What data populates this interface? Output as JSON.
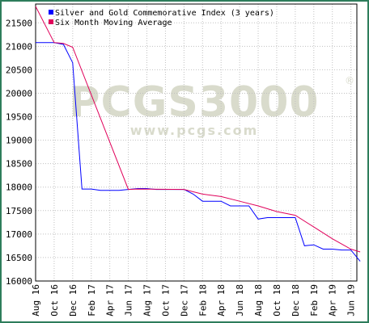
{
  "chart_data": {
    "type": "line",
    "title": "",
    "xlabel": "",
    "ylabel": "",
    "ylim": [
      16000,
      21900
    ],
    "grid": true,
    "legend_position": "top-left",
    "watermark": {
      "main": "PCGS3000",
      "sub": "www.pcgs.com",
      "registered": "®"
    },
    "y_ticks": [
      16000,
      16500,
      17000,
      17500,
      18000,
      18500,
      19000,
      19500,
      20000,
      20500,
      21000,
      21500
    ],
    "x_tick_labels": [
      "Aug 16",
      "Oct 16",
      "Dec 16",
      "Feb 17",
      "Apr 17",
      "Jun 17",
      "Aug 17",
      "Oct 17",
      "Dec 17",
      "Feb 18",
      "Apr 18",
      "Jun 18",
      "Aug 18",
      "Oct 18",
      "Dec 18",
      "Feb 19",
      "Apr 19",
      "Jun 19"
    ],
    "series": [
      {
        "name": "Silver and Gold Commemorative Index (3 years)",
        "color": "#0000ff",
        "points": [
          [
            "Aug 16",
            21080
          ],
          [
            "Oct 16",
            21080
          ],
          [
            "Nov 16",
            21040
          ],
          [
            "Dec 16",
            20650
          ],
          [
            "Jan 17",
            17960
          ],
          [
            "Feb 17",
            17960
          ],
          [
            "Mar 17",
            17930
          ],
          [
            "Apr 17",
            17930
          ],
          [
            "May 17",
            17930
          ],
          [
            "Jun 17",
            17950
          ],
          [
            "Jul 17",
            17970
          ],
          [
            "Aug 17",
            17970
          ],
          [
            "Sep 17",
            17950
          ],
          [
            "Oct 17",
            17950
          ],
          [
            "Nov 17",
            17950
          ],
          [
            "Dec 17",
            17950
          ],
          [
            "Jan 18",
            17850
          ],
          [
            "Feb 18",
            17700
          ],
          [
            "Mar 18",
            17700
          ],
          [
            "Apr 18",
            17700
          ],
          [
            "May 18",
            17600
          ],
          [
            "Jun 18",
            17600
          ],
          [
            "Jul 18",
            17600
          ],
          [
            "Aug 18",
            17320
          ],
          [
            "Sep 18",
            17350
          ],
          [
            "Oct 18",
            17350
          ],
          [
            "Nov 18",
            17350
          ],
          [
            "Dec 18",
            17350
          ],
          [
            "Jan 19",
            16750
          ],
          [
            "Feb 19",
            16770
          ],
          [
            "Mar 19",
            16680
          ],
          [
            "Apr 19",
            16680
          ],
          [
            "May 19",
            16660
          ],
          [
            "Jun 19",
            16660
          ],
          [
            "Jul 19",
            16420
          ]
        ]
      },
      {
        "name": "Six Month Moving Average",
        "color": "#e0005a",
        "points": [
          [
            "Aug 16",
            21850
          ],
          [
            "Oct 16",
            21080
          ],
          [
            "Nov 16",
            21060
          ],
          [
            "Dec 16",
            20980
          ],
          [
            "Jun 17",
            17950
          ],
          [
            "Jul 17",
            17960
          ],
          [
            "Dec 17",
            17950
          ],
          [
            "Feb 18",
            17850
          ],
          [
            "Apr 18",
            17800
          ],
          [
            "Jun 18",
            17700
          ],
          [
            "Aug 18",
            17600
          ],
          [
            "Oct 18",
            17480
          ],
          [
            "Dec 18",
            17400
          ],
          [
            "Feb 19",
            17150
          ],
          [
            "Apr 19",
            16900
          ],
          [
            "Jun 19",
            16680
          ],
          [
            "Jul 19",
            16620
          ]
        ]
      }
    ]
  }
}
